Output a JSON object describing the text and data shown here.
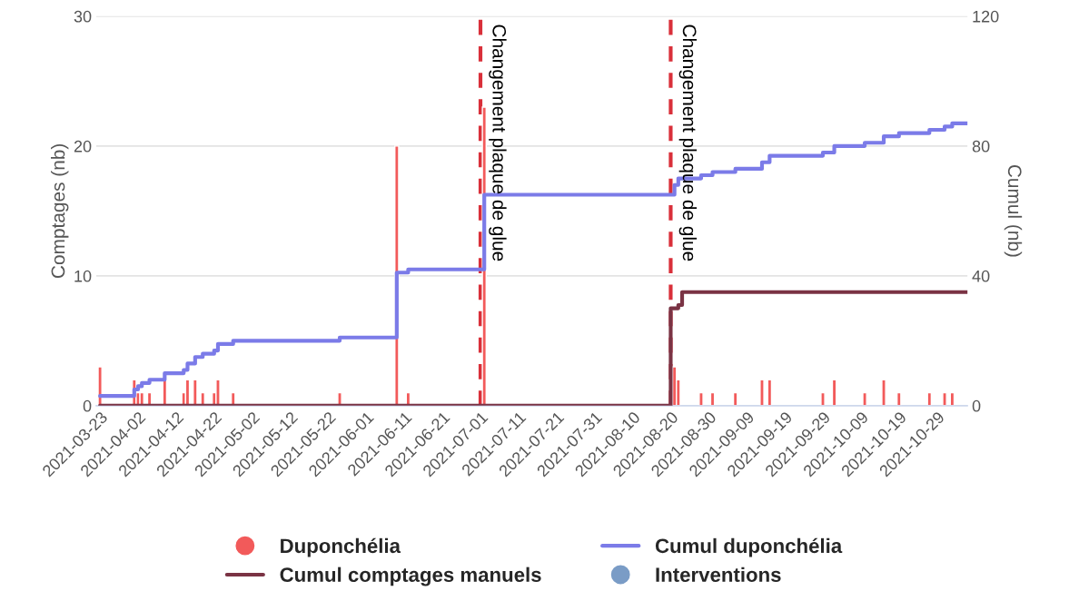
{
  "chart_data": {
    "type": "bar",
    "ylabel": "Comptages (nb)",
    "y2label": "Cumul (nb)",
    "xlim": [
      "2021-03-22",
      "2021-11-06"
    ],
    "xticks": [
      "2021-03-23",
      "2021-04-02",
      "2021-04-12",
      "2021-04-22",
      "2021-05-02",
      "2021-05-12",
      "2021-05-22",
      "2021-06-01",
      "2021-06-11",
      "2021-06-21",
      "2021-07-01",
      "2021-07-11",
      "2021-07-21",
      "2021-07-31",
      "2021-08-10",
      "2021-08-20",
      "2021-08-30",
      "2021-09-09",
      "2021-09-19",
      "2021-09-29",
      "2021-10-09",
      "2021-10-19",
      "2021-10-29"
    ],
    "ylim": [
      0,
      30
    ],
    "yticks": [
      0,
      10,
      20,
      30
    ],
    "y2lim": [
      0,
      120
    ],
    "y2ticks": [
      0,
      40,
      80,
      120
    ],
    "grid": "y",
    "legend": "bottom",
    "series": [
      {
        "name": "Duponchélia",
        "color": "#f25a5a",
        "x": [
          "2021-03-23",
          "2021-04-01",
          "2021-04-02",
          "2021-04-03",
          "2021-04-05",
          "2021-04-09",
          "2021-04-14",
          "2021-04-15",
          "2021-04-17",
          "2021-04-19",
          "2021-04-22",
          "2021-04-23",
          "2021-04-27",
          "2021-05-25",
          "2021-06-09",
          "2021-06-12",
          "2021-07-02",
          "2021-08-21",
          "2021-08-22",
          "2021-08-28",
          "2021-08-31",
          "2021-09-06",
          "2021-09-13",
          "2021-09-15",
          "2021-09-29",
          "2021-10-02",
          "2021-10-10",
          "2021-10-15",
          "2021-10-19",
          "2021-10-27",
          "2021-10-31",
          "2021-11-02"
        ],
        "values": [
          3,
          2,
          1,
          1,
          1,
          2,
          1,
          2,
          2,
          1,
          1,
          2,
          1,
          1,
          20,
          1,
          23,
          3,
          2,
          1,
          1,
          1,
          2,
          2,
          1,
          2,
          1,
          2,
          1,
          1,
          1,
          1
        ]
      },
      {
        "name": "Cumul duponchélia",
        "type": "step",
        "axis": "y2",
        "color": "#7b7be8",
        "x": [
          "2021-03-23",
          "2021-04-01",
          "2021-04-02",
          "2021-04-03",
          "2021-04-05",
          "2021-04-09",
          "2021-04-14",
          "2021-04-15",
          "2021-04-17",
          "2021-04-19",
          "2021-04-22",
          "2021-04-23",
          "2021-04-27",
          "2021-05-25",
          "2021-06-09",
          "2021-06-12",
          "2021-07-02",
          "2021-08-21",
          "2021-08-22",
          "2021-08-28",
          "2021-08-31",
          "2021-09-06",
          "2021-09-13",
          "2021-09-15",
          "2021-09-29",
          "2021-10-02",
          "2021-10-10",
          "2021-10-15",
          "2021-10-19",
          "2021-10-27",
          "2021-10-31",
          "2021-11-02",
          "2021-11-06"
        ],
        "values": [
          3,
          5,
          6,
          7,
          8,
          10,
          11,
          13,
          15,
          16,
          17,
          19,
          20,
          21,
          41,
          42,
          65,
          68,
          70,
          71,
          72,
          73,
          75,
          77,
          78,
          80,
          81,
          83,
          84,
          85,
          86,
          87,
          87
        ]
      },
      {
        "name": "Cumul comptages manuels",
        "type": "step",
        "axis": "y2",
        "color": "#7a3344",
        "x": [
          "2021-03-23",
          "2021-08-20",
          "2021-08-22",
          "2021-08-23",
          "2021-11-06"
        ],
        "values": [
          0,
          30,
          31,
          35,
          35
        ]
      },
      {
        "name": "Interventions",
        "type": "scatter",
        "color": "#7a9cc6"
      }
    ],
    "ref_lines": [
      {
        "axis": "x",
        "value": "2021-07-01",
        "label": "Changement plaque de glue",
        "color": "#d9303a",
        "line_style": "dashed"
      },
      {
        "axis": "x",
        "value": "2021-08-20",
        "label": "Changement plaque de glue",
        "color": "#d9303a",
        "line_style": "dashed"
      }
    ]
  }
}
